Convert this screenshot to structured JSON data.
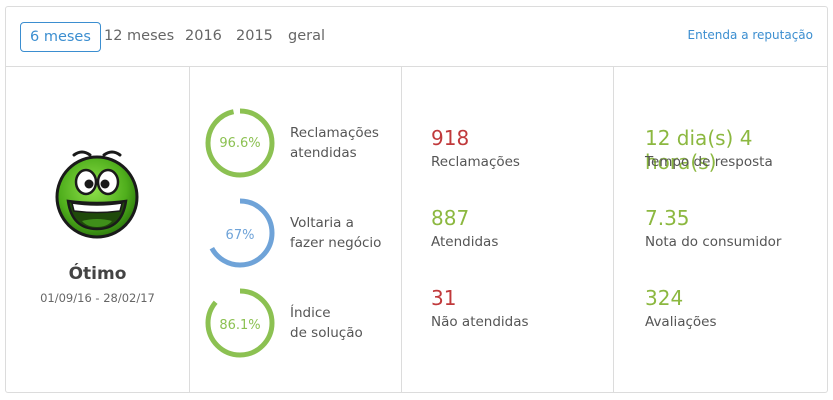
{
  "tabs": [
    {
      "label": "6 meses",
      "active": true
    },
    {
      "label": "12 meses",
      "active": false
    },
    {
      "label": "2016",
      "active": false
    },
    {
      "label": "2015",
      "active": false
    },
    {
      "label": "geral",
      "active": false
    }
  ],
  "reputation_link": "Entenda a reputação",
  "rating": {
    "title": "Ótimo",
    "period": "01/09/16 - 28/02/17"
  },
  "rings": [
    {
      "value_text": "96.6%",
      "percent": 96.6,
      "label_line1": "Reclamações",
      "label_line2": "atendidas",
      "color": "#8cc152"
    },
    {
      "value_text": "67%",
      "percent": 67,
      "label_line1": "Voltaria a",
      "label_line2": "fazer negócio",
      "color": "#6fa3d8"
    },
    {
      "value_text": "86.1%",
      "percent": 86.1,
      "label_line1": "Índice",
      "label_line2": "de solução",
      "color": "#8cc152"
    }
  ],
  "stats_left": [
    {
      "value": "918",
      "label": "Reclamações",
      "color": "red"
    },
    {
      "value": "887",
      "label": "Atendidas",
      "color": "green"
    },
    {
      "value": "31",
      "label": "Não atendidas",
      "color": "red"
    }
  ],
  "stats_right": [
    {
      "value": "12 dia(s) 4 hora(s)",
      "label": "Tempo de resposta",
      "color": "green"
    },
    {
      "value": "7.35",
      "label": "Nota do consumidor",
      "color": "green"
    },
    {
      "value": "324",
      "label": "Avaliações",
      "color": "green"
    }
  ],
  "icons": {
    "smiley": "smiley-face-icon"
  }
}
